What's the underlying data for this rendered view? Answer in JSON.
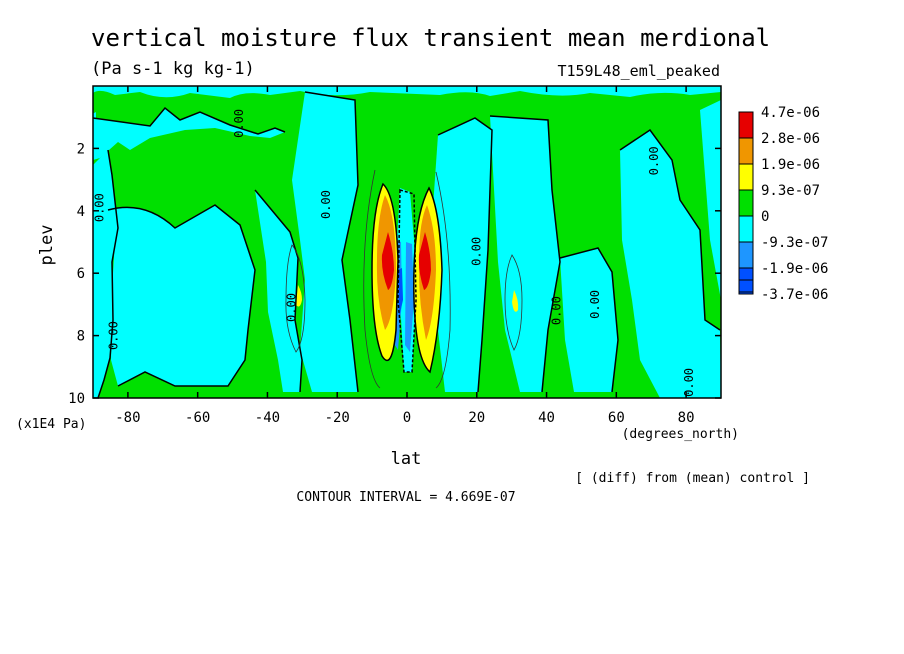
{
  "chart_data": {
    "type": "heatmap",
    "title": "vertical moisture flux transient mean merdional",
    "units": "(Pa s-1 kg kg-1)",
    "experiment": "T159L48_eml_peaked",
    "xlabel": "lat",
    "xunits": "(degrees_north)",
    "ylabel": "plev",
    "yunits": "(x1E4 Pa)",
    "xlim": [
      -90,
      90
    ],
    "ylim": [
      10,
      0
    ],
    "x_ticks": [
      "-80",
      "-60",
      "-40",
      "-20",
      "0",
      "20",
      "40",
      "60",
      "80"
    ],
    "x_tick_values": [
      -80,
      -60,
      -40,
      -20,
      0,
      20,
      40,
      60,
      80
    ],
    "y_ticks": [
      "2",
      "4",
      "6",
      "8",
      "10"
    ],
    "y_tick_values": [
      2,
      4,
      6,
      8,
      10
    ],
    "contour_interval_label": "CONTOUR INTERVAL = 4.669E-07",
    "note": "[ (diff) from (mean) control ]",
    "legend": {
      "placement": "right",
      "levels": [
        {
          "label": "4.7e-06",
          "color": "#e60000"
        },
        {
          "label": "2.8e-06",
          "color": "#f09600"
        },
        {
          "label": "1.9e-06",
          "color": "#ffff00"
        },
        {
          "label": "9.3e-07",
          "color": "#00e000"
        },
        {
          "label": "0",
          "color": "#00ffff"
        },
        {
          "label": "-9.3e-07",
          "color": "#1e96ff"
        },
        {
          "label": "-1.9e-06",
          "color": "#0050ff"
        },
        {
          "label": "-3.7e-06",
          "color": null
        }
      ]
    },
    "contour_labels": [
      {
        "text": "0.00",
        "lat": -87,
        "plev": 3.9
      },
      {
        "text": "0.00",
        "lat": -83,
        "plev": 8.0
      },
      {
        "text": "0.00",
        "lat": -47,
        "plev": 1.2
      },
      {
        "text": "0.00",
        "lat": -32,
        "plev": 7.1
      },
      {
        "text": "0.00",
        "lat": -22,
        "plev": 3.8
      },
      {
        "text": "0.00",
        "lat": 21,
        "plev": 5.3
      },
      {
        "text": "0.00",
        "lat": 44,
        "plev": 7.2
      },
      {
        "text": "0.00",
        "lat": 55,
        "plev": 7.0
      },
      {
        "text": "0.00",
        "lat": 72,
        "plev": 2.4
      },
      {
        "text": "0.00",
        "lat": 82,
        "plev": 9.5
      }
    ]
  }
}
